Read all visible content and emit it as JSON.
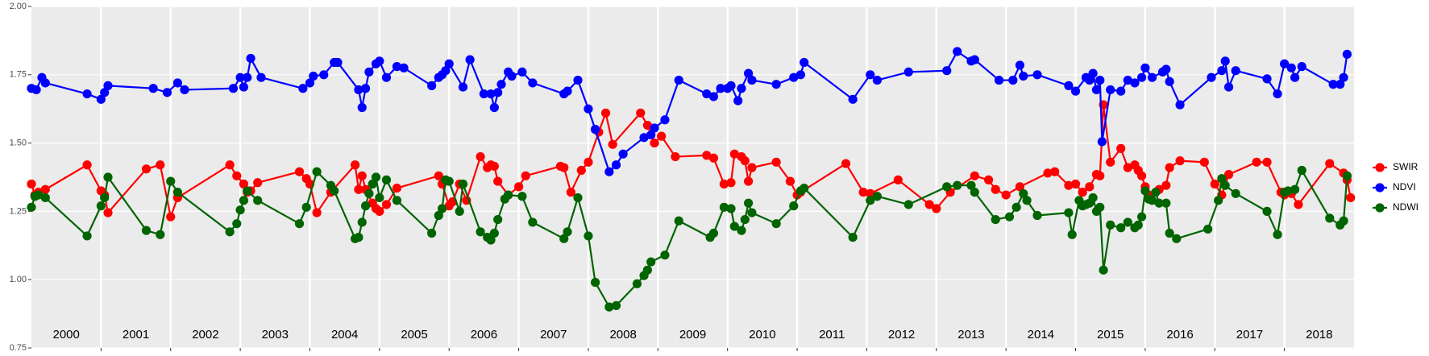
{
  "chart_data": {
    "type": "line",
    "xlim": [
      2000,
      2019
    ],
    "xticks": [
      2001,
      2002,
      2003,
      2004,
      2005,
      2006,
      2007,
      2008,
      2009,
      2010,
      2011,
      2012,
      2013,
      2014,
      2015,
      2016,
      2017,
      2018
    ],
    "year_labels": [
      2000,
      2001,
      2002,
      2003,
      2004,
      2005,
      2006,
      2007,
      2008,
      2009,
      2010,
      2011,
      2012,
      2013,
      2014,
      2015,
      2016,
      2017,
      2018
    ],
    "ylim": [
      0.75,
      2.0
    ],
    "yticks": [
      0.75,
      {
        "value": 1.0,
        "label": "1.00"
      },
      1.25,
      {
        "value": 1.5,
        "label": "1.50"
      },
      1.75,
      {
        "value": 2.0,
        "label": "2.00"
      }
    ],
    "grid": true,
    "legend": "right",
    "series": [
      {
        "name": "SWIR",
        "color": "#ff0000",
        "x": [
          2000.0,
          2000.05,
          2000.1,
          2000.2,
          2000.8,
          2001.0,
          2001.05,
          2001.1,
          2001.65,
          2001.85,
          2002.0,
          2002.1,
          2002.85,
          2002.95,
          2003.05,
          2003.1,
          2003.15,
          2003.25,
          2003.85,
          2003.95,
          2004.0,
          2004.1,
          2004.3,
          2004.65,
          2004.7,
          2004.75,
          2004.8,
          2004.9,
          2004.95,
          2005.0,
          2005.1,
          2005.25,
          2005.85,
          2005.9,
          2006.0,
          2006.05,
          2006.15,
          2006.25,
          2006.45,
          2006.55,
          2006.6,
          2006.65,
          2006.7,
          2006.85,
          2007.0,
          2007.1,
          2007.6,
          2007.65,
          2007.75,
          2007.9,
          2008.0,
          2008.15,
          2008.25,
          2008.35,
          2008.75,
          2008.85,
          2008.95,
          2009.05,
          2009.25,
          2009.7,
          2009.8,
          2009.95,
          2010.05,
          2010.1,
          2010.2,
          2010.25,
          2010.3,
          2010.35,
          2010.7,
          2010.9,
          2011.0,
          2011.05,
          2011.7,
          2011.95,
          2012.05,
          2012.45,
          2012.9,
          2013.0,
          2013.2,
          2013.55,
          2013.75,
          2013.85,
          2014.0,
          2014.2,
          2014.6,
          2014.7,
          2014.9,
          2015.0,
          2015.1,
          2015.2,
          2015.3,
          2015.35,
          2015.4,
          2015.5,
          2015.65,
          2015.75,
          2015.85,
          2015.9,
          2015.95,
          2016.0,
          2016.05,
          2016.2,
          2016.3,
          2016.35,
          2016.5,
          2016.85,
          2017.0,
          2017.1,
          2017.2,
          2017.6,
          2017.75,
          2017.95,
          2018.0,
          2018.1,
          2018.2,
          2018.65,
          2018.85,
          2018.9,
          2018.95
        ],
        "values": [
          1.35,
          1.31,
          1.32,
          1.33,
          1.42,
          1.325,
          1.31,
          1.245,
          1.405,
          1.42,
          1.23,
          1.3,
          1.42,
          1.38,
          1.35,
          1.32,
          1.325,
          1.355,
          1.395,
          1.37,
          1.35,
          1.245,
          1.32,
          1.42,
          1.33,
          1.38,
          1.33,
          1.28,
          1.26,
          1.25,
          1.275,
          1.335,
          1.38,
          1.35,
          1.27,
          1.285,
          1.35,
          1.29,
          1.45,
          1.41,
          1.42,
          1.415,
          1.36,
          1.31,
          1.34,
          1.38,
          1.415,
          1.41,
          1.32,
          1.4,
          1.43,
          1.54,
          1.61,
          1.495,
          1.61,
          1.565,
          1.5,
          1.525,
          1.45,
          1.455,
          1.445,
          1.35,
          1.355,
          1.46,
          1.45,
          1.435,
          1.36,
          1.41,
          1.43,
          1.36,
          1.31,
          1.32,
          1.425,
          1.32,
          1.315,
          1.365,
          1.275,
          1.26,
          1.32,
          1.38,
          1.365,
          1.33,
          1.31,
          1.34,
          1.39,
          1.395,
          1.345,
          1.35,
          1.32,
          1.34,
          1.385,
          1.38,
          1.64,
          1.43,
          1.48,
          1.41,
          1.42,
          1.4,
          1.38,
          1.34,
          1.31,
          1.33,
          1.345,
          1.41,
          1.435,
          1.43,
          1.35,
          1.31,
          1.385,
          1.43,
          1.43,
          1.32,
          1.31,
          1.315,
          1.275,
          1.425,
          1.39,
          1.365,
          1.3
        ]
      },
      {
        "name": "NDVI",
        "color": "#0000ff",
        "x": [
          2000.0,
          2000.07,
          2000.15,
          2000.2,
          2000.8,
          2001.0,
          2001.05,
          2001.1,
          2001.75,
          2001.95,
          2002.1,
          2002.2,
          2002.9,
          2003.0,
          2003.05,
          2003.1,
          2003.15,
          2003.3,
          2003.9,
          2004.0,
          2004.05,
          2004.2,
          2004.35,
          2004.4,
          2004.7,
          2004.75,
          2004.8,
          2004.85,
          2004.95,
          2005.0,
          2005.1,
          2005.25,
          2005.35,
          2005.75,
          2005.85,
          2005.9,
          2005.95,
          2006.0,
          2006.2,
          2006.3,
          2006.5,
          2006.6,
          2006.65,
          2006.7,
          2006.75,
          2006.85,
          2006.9,
          2007.05,
          2007.2,
          2007.65,
          2007.7,
          2007.85,
          2008.0,
          2008.1,
          2008.3,
          2008.4,
          2008.5,
          2008.8,
          2008.9,
          2008.95,
          2009.1,
          2009.3,
          2009.7,
          2009.8,
          2009.9,
          2010.0,
          2010.05,
          2010.15,
          2010.2,
          2010.3,
          2010.35,
          2010.7,
          2010.95,
          2011.05,
          2011.1,
          2011.8,
          2012.05,
          2012.15,
          2012.6,
          2013.15,
          2013.3,
          2013.5,
          2013.55,
          2013.9,
          2014.1,
          2014.2,
          2014.25,
          2014.45,
          2014.9,
          2015.0,
          2015.15,
          2015.2,
          2015.25,
          2015.3,
          2015.35,
          2015.38,
          2015.5,
          2015.65,
          2015.75,
          2015.85,
          2015.95,
          2016.0,
          2016.1,
          2016.25,
          2016.3,
          2016.35,
          2016.5,
          2016.95,
          2017.1,
          2017.15,
          2017.2,
          2017.3,
          2017.75,
          2017.9,
          2018.0,
          2018.1,
          2018.15,
          2018.25,
          2018.7,
          2018.8,
          2018.85,
          2018.9
        ],
        "values": [
          1.7,
          1.695,
          1.74,
          1.72,
          1.68,
          1.66,
          1.685,
          1.71,
          1.7,
          1.685,
          1.72,
          1.695,
          1.7,
          1.74,
          1.705,
          1.74,
          1.81,
          1.74,
          1.7,
          1.72,
          1.745,
          1.75,
          1.795,
          1.795,
          1.695,
          1.63,
          1.7,
          1.76,
          1.79,
          1.8,
          1.74,
          1.78,
          1.775,
          1.71,
          1.74,
          1.75,
          1.765,
          1.79,
          1.705,
          1.805,
          1.68,
          1.68,
          1.63,
          1.685,
          1.715,
          1.76,
          1.745,
          1.76,
          1.72,
          1.68,
          1.69,
          1.73,
          1.625,
          1.55,
          1.395,
          1.42,
          1.46,
          1.52,
          1.53,
          1.555,
          1.585,
          1.73,
          1.68,
          1.67,
          1.7,
          1.7,
          1.71,
          1.655,
          1.7,
          1.755,
          1.73,
          1.715,
          1.74,
          1.75,
          1.795,
          1.66,
          1.75,
          1.73,
          1.76,
          1.765,
          1.835,
          1.8,
          1.805,
          1.73,
          1.73,
          1.785,
          1.745,
          1.75,
          1.71,
          1.69,
          1.74,
          1.73,
          1.755,
          1.695,
          1.73,
          1.505,
          1.695,
          1.69,
          1.73,
          1.72,
          1.74,
          1.775,
          1.74,
          1.76,
          1.77,
          1.725,
          1.64,
          1.74,
          1.765,
          1.8,
          1.705,
          1.765,
          1.735,
          1.68,
          1.79,
          1.775,
          1.74,
          1.78,
          1.715,
          1.715,
          1.74,
          1.825
        ]
      },
      {
        "name": "NDWI",
        "color": "#006400",
        "x": [
          2000.0,
          2000.05,
          2000.1,
          2000.2,
          2000.8,
          2001.0,
          2001.05,
          2001.1,
          2001.65,
          2001.85,
          2002.0,
          2002.1,
          2002.85,
          2002.95,
          2003.0,
          2003.05,
          2003.1,
          2003.25,
          2003.85,
          2003.95,
          2004.1,
          2004.3,
          2004.35,
          2004.65,
          2004.7,
          2004.75,
          2004.8,
          2004.85,
          2004.9,
          2004.95,
          2005.0,
          2005.1,
          2005.25,
          2005.75,
          2005.85,
          2005.9,
          2005.95,
          2006.0,
          2006.15,
          2006.2,
          2006.45,
          2006.55,
          2006.6,
          2006.65,
          2006.7,
          2006.8,
          2006.85,
          2007.05,
          2007.2,
          2007.65,
          2007.7,
          2007.85,
          2008.0,
          2008.1,
          2008.3,
          2008.4,
          2008.7,
          2008.8,
          2008.85,
          2008.9,
          2009.1,
          2009.3,
          2009.75,
          2009.8,
          2009.95,
          2010.05,
          2010.1,
          2010.2,
          2010.25,
          2010.3,
          2010.35,
          2010.7,
          2010.95,
          2011.05,
          2011.1,
          2011.8,
          2012.05,
          2012.15,
          2012.6,
          2013.15,
          2013.3,
          2013.5,
          2013.55,
          2013.85,
          2014.05,
          2014.15,
          2014.25,
          2014.3,
          2014.45,
          2014.9,
          2014.95,
          2015.05,
          2015.1,
          2015.15,
          2015.2,
          2015.25,
          2015.3,
          2015.35,
          2015.4,
          2015.5,
          2015.65,
          2015.75,
          2015.85,
          2015.9,
          2015.95,
          2016.0,
          2016.05,
          2016.1,
          2016.15,
          2016.2,
          2016.3,
          2016.35,
          2016.45,
          2016.9,
          2017.05,
          2017.1,
          2017.15,
          2017.3,
          2017.75,
          2017.9,
          2018.0,
          2018.05,
          2018.15,
          2018.25,
          2018.65,
          2018.8,
          2018.85,
          2018.9
        ],
        "values": [
          1.265,
          1.305,
          1.31,
          1.3,
          1.16,
          1.27,
          1.3,
          1.375,
          1.18,
          1.165,
          1.36,
          1.32,
          1.175,
          1.205,
          1.255,
          1.29,
          1.325,
          1.29,
          1.205,
          1.265,
          1.395,
          1.345,
          1.325,
          1.15,
          1.155,
          1.21,
          1.27,
          1.315,
          1.35,
          1.375,
          1.3,
          1.365,
          1.29,
          1.17,
          1.235,
          1.26,
          1.365,
          1.36,
          1.25,
          1.35,
          1.175,
          1.155,
          1.145,
          1.17,
          1.22,
          1.295,
          1.31,
          1.305,
          1.21,
          1.15,
          1.175,
          1.3,
          1.16,
          0.99,
          0.9,
          0.905,
          0.985,
          1.015,
          1.035,
          1.065,
          1.09,
          1.215,
          1.155,
          1.17,
          1.265,
          1.26,
          1.195,
          1.18,
          1.22,
          1.28,
          1.245,
          1.205,
          1.27,
          1.325,
          1.335,
          1.155,
          1.29,
          1.305,
          1.275,
          1.34,
          1.345,
          1.345,
          1.32,
          1.22,
          1.23,
          1.265,
          1.315,
          1.29,
          1.235,
          1.245,
          1.165,
          1.29,
          1.27,
          1.275,
          1.28,
          1.3,
          1.25,
          1.265,
          1.035,
          1.2,
          1.19,
          1.21,
          1.19,
          1.2,
          1.23,
          1.325,
          1.295,
          1.29,
          1.32,
          1.28,
          1.28,
          1.17,
          1.15,
          1.185,
          1.29,
          1.37,
          1.345,
          1.315,
          1.25,
          1.165,
          1.32,
          1.325,
          1.33,
          1.4,
          1.225,
          1.2,
          1.215,
          1.38
        ]
      }
    ]
  }
}
